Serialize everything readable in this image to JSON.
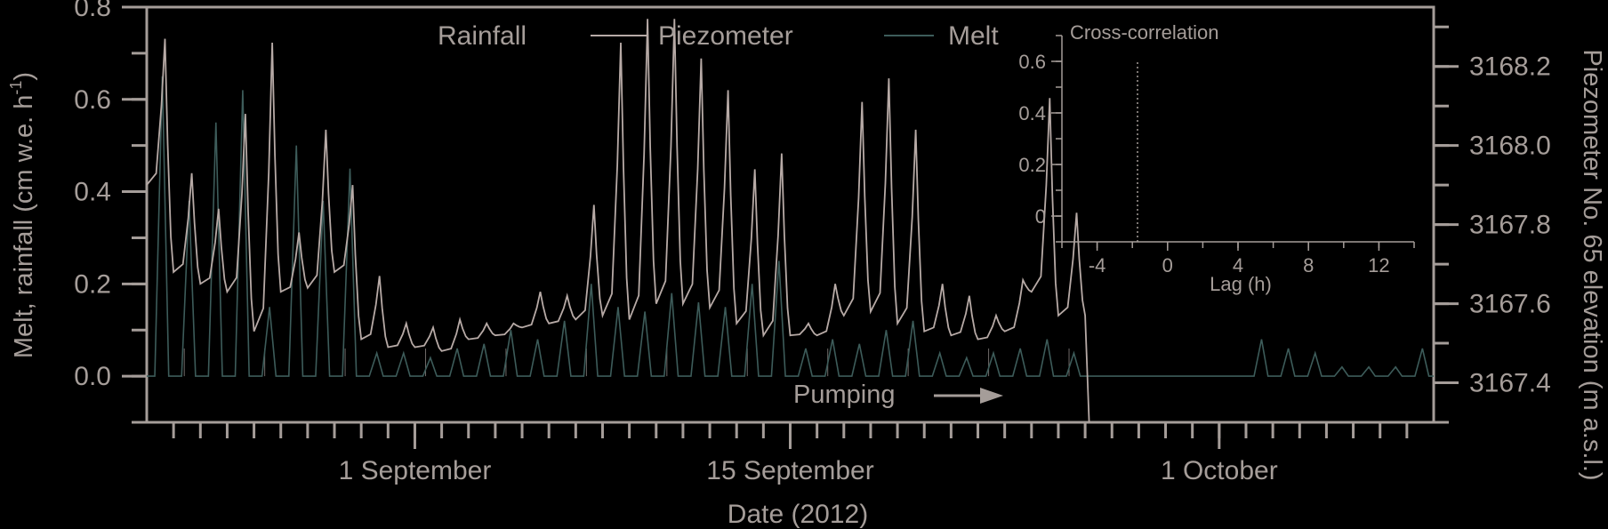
{
  "colors": {
    "background": "#000000",
    "axis": "#a59d99",
    "piezometer": "#b7aaa6",
    "melt": "#3d5c5a",
    "rainfall": "#6f6a68"
  },
  "chart_data": [
    {
      "type": "line",
      "xlabel": "Date (2012)",
      "ylabel": "Melt, rainfall (cm w.e. h^-1)",
      "ylabel_parts": {
        "main": "Melt, rainfall (cm w.e. h",
        "sup": "-1",
        "end": ")"
      },
      "y2label": "Piezometer No. 65 elevation (m a.s.l.)",
      "xlim": [
        "2012-08-22",
        "2012-10-09"
      ],
      "ylim": [
        -0.1,
        0.8
      ],
      "y2lim": [
        3167.3,
        3168.35
      ],
      "x_major_ticks": [
        {
          "date": "2012-09-01",
          "label": "1 September"
        },
        {
          "date": "2012-09-15",
          "label": "15 September"
        },
        {
          "date": "2012-10-01",
          "label": "1 October"
        }
      ],
      "y_ticks": [
        "0.0",
        "0.2",
        "0.4",
        "0.6",
        "0.8"
      ],
      "y_tick_values": [
        0.0,
        0.2,
        0.4,
        0.6,
        0.8
      ],
      "y2_ticks": [
        "3167.4",
        "3167.6",
        "3167.8",
        "3168.0",
        "3168.2"
      ],
      "y2_tick_values": [
        3167.4,
        3167.6,
        3167.8,
        3168.0,
        3168.2
      ],
      "legend": {
        "position": "top",
        "entries": [
          "Rainfall",
          "Piezometer",
          "Melt"
        ]
      },
      "annotation": "Pumping",
      "annotation_date": "2012-09-26",
      "piezometer_daily_peaks": {
        "x": [
          "2012-08-22",
          "2012-08-23",
          "2012-08-24",
          "2012-08-25",
          "2012-08-26",
          "2012-08-27",
          "2012-08-28",
          "2012-08-29",
          "2012-08-30",
          "2012-08-31",
          "2012-09-01",
          "2012-09-02",
          "2012-09-03",
          "2012-09-04",
          "2012-09-05",
          "2012-09-06",
          "2012-09-07",
          "2012-09-08",
          "2012-09-09",
          "2012-09-10",
          "2012-09-11",
          "2012-09-12",
          "2012-09-13",
          "2012-09-14",
          "2012-09-15",
          "2012-09-16",
          "2012-09-17",
          "2012-09-18",
          "2012-09-19",
          "2012-09-20",
          "2012-09-21",
          "2012-09-22",
          "2012-09-23",
          "2012-09-24",
          "2012-09-25"
        ],
        "y": [
          3168.27,
          3167.93,
          3167.84,
          3168.08,
          3168.26,
          3167.78,
          3168.04,
          3167.9,
          3167.67,
          3167.55,
          3167.54,
          3167.56,
          3167.55,
          3167.55,
          3167.63,
          3167.62,
          3167.85,
          3168.26,
          3168.32,
          3168.32,
          3168.22,
          3168.14,
          3167.94,
          3167.98,
          3167.55,
          3167.65,
          3168.11,
          3168.17,
          3168.04,
          3167.65,
          3167.62,
          3167.57,
          3167.66,
          3168.12,
          3167.83
        ]
      },
      "piezometer_daily_troughs": [
        3167.9,
        3167.68,
        3167.65,
        3167.63,
        3167.53,
        3167.63,
        3167.64,
        3167.68,
        3167.51,
        3167.49,
        3167.49,
        3167.48,
        3167.51,
        3167.52,
        3167.54,
        3167.55,
        3167.56,
        3167.57,
        3167.56,
        3167.6,
        3167.6,
        3167.59,
        3167.55,
        3167.52,
        3167.52,
        3167.52,
        3167.57,
        3167.58,
        3167.55,
        3167.53,
        3167.52,
        3167.51,
        3167.53,
        3167.63,
        3167.57
      ],
      "piezometer_end": {
        "date": "2012-09-26",
        "value": 3167.3
      },
      "melt_daily_max": {
        "x": [
          "2012-08-22",
          "2012-08-23",
          "2012-08-24",
          "2012-08-25",
          "2012-08-26",
          "2012-08-27",
          "2012-08-28",
          "2012-08-29",
          "2012-08-30",
          "2012-08-31",
          "2012-09-01",
          "2012-09-02",
          "2012-09-03",
          "2012-09-04",
          "2012-09-05",
          "2012-09-06",
          "2012-09-07",
          "2012-09-08",
          "2012-09-09",
          "2012-09-10",
          "2012-09-11",
          "2012-09-12",
          "2012-09-13",
          "2012-09-14",
          "2012-09-15",
          "2012-09-16",
          "2012-09-17",
          "2012-09-18",
          "2012-09-19",
          "2012-09-20",
          "2012-09-21",
          "2012-09-22",
          "2012-09-23",
          "2012-09-24",
          "2012-09-25",
          "2012-09-26",
          "2012-09-27",
          "2012-09-28",
          "2012-09-29",
          "2012-09-30",
          "2012-10-01",
          "2012-10-02",
          "2012-10-03",
          "2012-10-04",
          "2012-10-05",
          "2012-10-06",
          "2012-10-07",
          "2012-10-08"
        ],
        "y": [
          0.65,
          0.38,
          0.55,
          0.62,
          0.15,
          0.5,
          0.38,
          0.45,
          0.05,
          0.05,
          0.04,
          0.06,
          0.07,
          0.1,
          0.08,
          0.12,
          0.2,
          0.15,
          0.14,
          0.18,
          0.16,
          0.15,
          0.2,
          0.25,
          0.06,
          0.08,
          0.07,
          0.1,
          0.12,
          0.05,
          0.04,
          0.05,
          0.06,
          0.08,
          0.05,
          0.0,
          0.0,
          0.0,
          0.0,
          0.0,
          0.0,
          0.08,
          0.06,
          0.05,
          0.02,
          0.02,
          0.02,
          0.06
        ]
      }
    },
    {
      "type": "line",
      "title": "Cross-correlation",
      "xlabel": "Lag (h)",
      "xlim": [
        -6,
        14
      ],
      "ylim": [
        -0.1,
        0.7
      ],
      "x_ticks": [
        "-4",
        "0",
        "4",
        "8",
        "12"
      ],
      "x_tick_values": [
        -4,
        0,
        4,
        8,
        12
      ],
      "y_ticks": [
        "0",
        "0.2",
        "0.4",
        "0.6"
      ],
      "y_tick_values": [
        0,
        0.2,
        0.4,
        0.6
      ],
      "reference_line_x": 0
    }
  ]
}
